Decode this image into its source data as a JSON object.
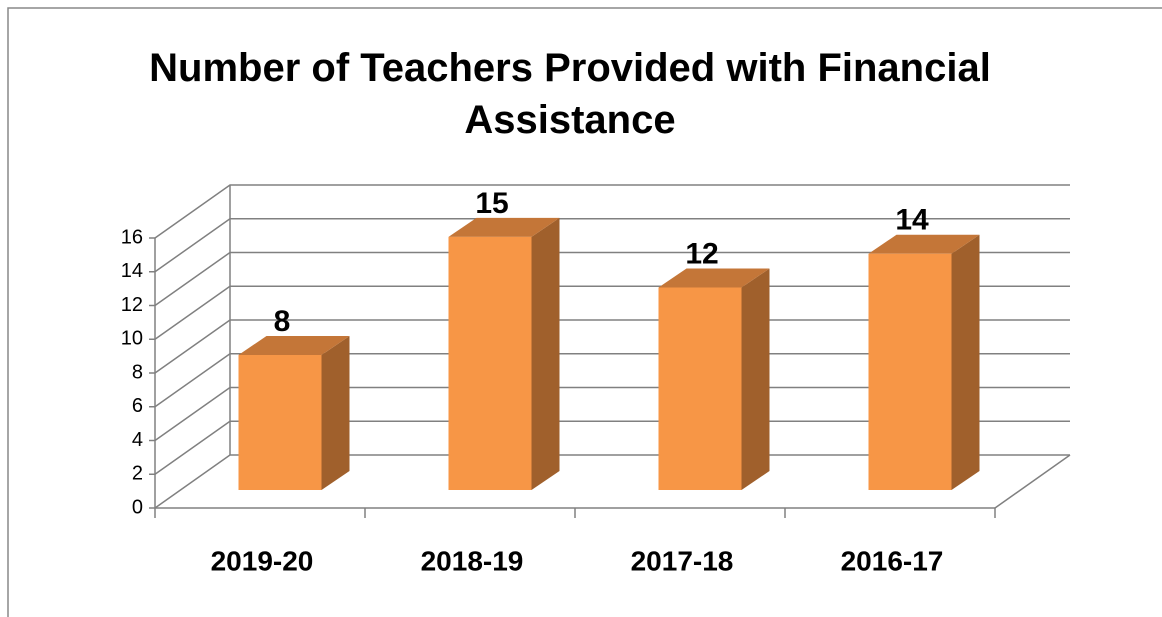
{
  "chart_data": {
    "type": "bar3d",
    "title": "Number of Teachers Provided with Financial Assistance",
    "categories": [
      "2019-20",
      "2018-19",
      "2017-18",
      "2016-17"
    ],
    "values": [
      8,
      15,
      12,
      14
    ],
    "color": "#f79646",
    "ylim": [
      0,
      16
    ],
    "yticks": [
      0,
      2,
      4,
      6,
      8,
      10,
      12,
      14,
      16
    ],
    "grid": true
  }
}
